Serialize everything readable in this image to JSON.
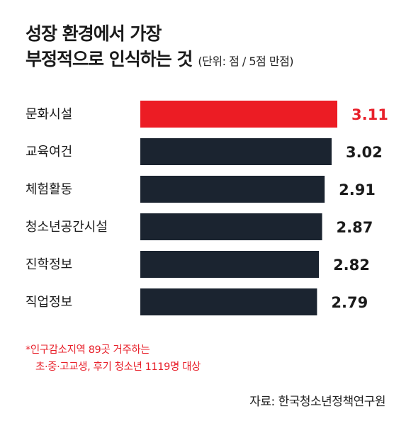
{
  "title": {
    "line1": "성장 환경에서 가장",
    "line2": "부정적으로 인식하는 것",
    "unit": "(단위: 점 / 5점 만점)"
  },
  "chart_data": {
    "type": "bar",
    "orientation": "horizontal",
    "categories": [
      "문화시설",
      "교육여건",
      "체험활동",
      "청소년공간시설",
      "진학정보",
      "직업정보"
    ],
    "values": [
      3.11,
      3.02,
      2.91,
      2.87,
      2.82,
      2.79
    ],
    "value_labels": [
      "3.11",
      "3.02",
      "2.91",
      "2.87",
      "2.82",
      "2.79"
    ],
    "highlight_index": 0,
    "xlim": [
      0,
      3.11
    ],
    "grid": false,
    "legend": "none"
  },
  "colors": {
    "bar": "#1b2430",
    "highlight": "#ec1c24",
    "highlight_label": "#e8212b",
    "label": "#1a1a1a"
  },
  "note": {
    "line1": "*인구감소지역 89곳 거주하는",
    "line2": "초·중·고교생, 후기 청소년 1119명 대상"
  },
  "source": "자료: 한국청소년정책연구원"
}
